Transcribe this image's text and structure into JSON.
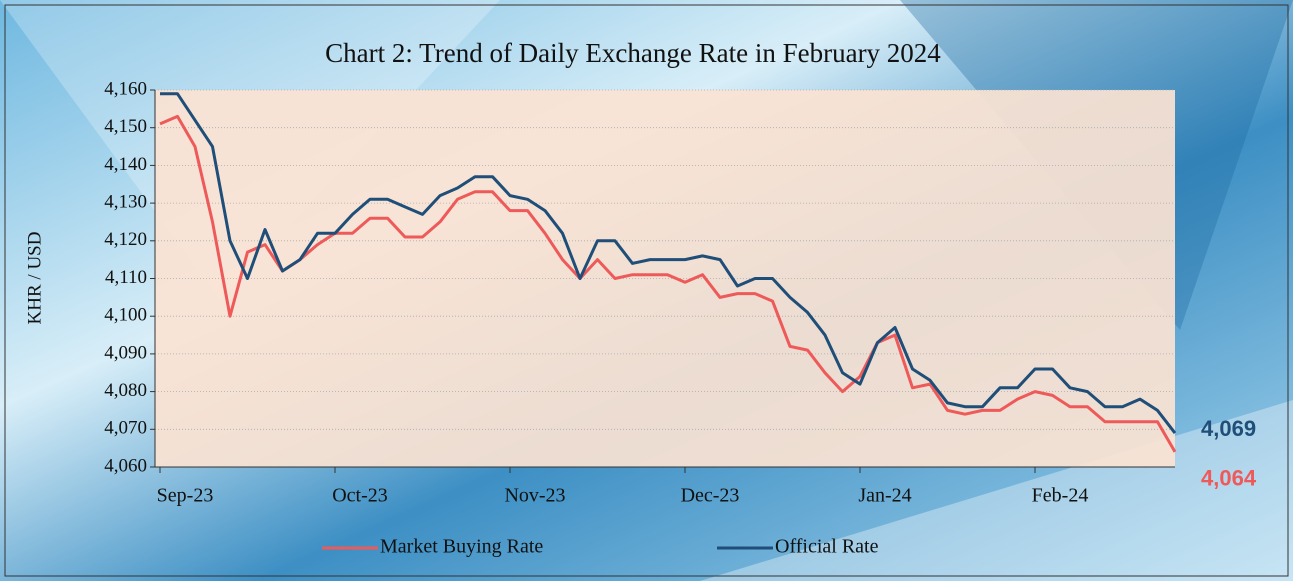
{
  "chart_data": {
    "type": "line",
    "title": "Chart 2: Trend of Daily Exchange Rate in February 2024",
    "y_label": "KHR / USD",
    "categories": [
      "Sep-23",
      null,
      null,
      null,
      null,
      null,
      null,
      null,
      null,
      null,
      "Oct-23",
      null,
      null,
      null,
      null,
      null,
      null,
      null,
      null,
      null,
      "Nov-23",
      null,
      null,
      null,
      null,
      null,
      null,
      null,
      null,
      null,
      "Dec-23",
      null,
      null,
      null,
      null,
      null,
      null,
      null,
      null,
      null,
      "Jan-24",
      null,
      null,
      null,
      null,
      null,
      null,
      null,
      null,
      null,
      "Feb-24",
      null,
      null,
      null,
      null,
      null,
      null,
      null,
      null
    ],
    "series": [
      {
        "name": "Market Buying Rate",
        "color": "#ee5a5a",
        "values": [
          4151,
          4153,
          4145,
          4125,
          4100,
          4117,
          4119,
          4112,
          4115,
          4119,
          4122,
          4122,
          4126,
          4126,
          4121,
          4121,
          4125,
          4131,
          4133,
          4133,
          4128,
          4128,
          4122,
          4115,
          4110,
          4115,
          4110,
          4111,
          4111,
          4111,
          4109,
          4111,
          4105,
          4106,
          4106,
          4104,
          4092,
          4091,
          4085,
          4080,
          4084,
          4093,
          4095,
          4081,
          4082,
          4075,
          4074,
          4075,
          4075,
          4078,
          4080,
          4079,
          4076,
          4076,
          4072,
          4072,
          4072,
          4072,
          4064
        ],
        "value_labels": [
          null,
          null,
          null,
          null,
          null,
          null,
          null,
          null,
          null,
          null,
          null,
          null,
          null,
          null,
          null,
          null,
          null,
          null,
          null,
          null,
          null,
          null,
          null,
          null,
          null,
          null,
          null,
          null,
          null,
          null,
          null,
          null,
          null,
          null,
          null,
          null,
          null,
          null,
          null,
          null,
          null,
          null,
          null,
          null,
          null,
          null,
          null,
          null,
          null,
          null,
          null,
          null,
          null,
          null,
          null,
          null,
          null,
          null,
          "4,064"
        ]
      },
      {
        "name": "Official Rate",
        "color": "#1f4e79",
        "values": [
          4159,
          4159,
          4152,
          4145,
          4120,
          4110,
          4123,
          4112,
          4115,
          4122,
          4122,
          4127,
          4131,
          4131,
          4129,
          4127,
          4132,
          4134,
          4137,
          4137,
          4132,
          4131,
          4128,
          4122,
          4110,
          4120,
          4120,
          4114,
          4115,
          4115,
          4115,
          4116,
          4115,
          4108,
          4110,
          4110,
          4105,
          4101,
          4095,
          4085,
          4082,
          4093,
          4097,
          4086,
          4083,
          4077,
          4076,
          4076,
          4081,
          4081,
          4086,
          4086,
          4081,
          4080,
          4076,
          4076,
          4078,
          4075,
          4069
        ],
        "value_labels": [
          null,
          null,
          null,
          null,
          null,
          null,
          null,
          null,
          null,
          null,
          null,
          null,
          null,
          null,
          null,
          null,
          null,
          null,
          null,
          null,
          null,
          null,
          null,
          null,
          null,
          null,
          null,
          null,
          null,
          null,
          null,
          null,
          null,
          null,
          null,
          null,
          null,
          null,
          null,
          null,
          null,
          null,
          null,
          null,
          null,
          null,
          null,
          null,
          null,
          null,
          null,
          null,
          null,
          null,
          null,
          null,
          null,
          null,
          "4,069"
        ]
      }
    ],
    "ylim": [
      4060,
      4160
    ],
    "yticks": [
      {
        "value": 4060,
        "label": "4,060"
      },
      {
        "value": 4070,
        "label": "4,070"
      },
      {
        "value": 4080,
        "label": "4,080"
      },
      {
        "value": 4090,
        "label": "4,090"
      },
      {
        "value": 4100,
        "label": "4,100"
      },
      {
        "value": 4110,
        "label": "4,110"
      },
      {
        "value": 4120,
        "label": "4,120"
      },
      {
        "value": 4130,
        "label": "4,130"
      },
      {
        "value": 4140,
        "label": "4,140"
      },
      {
        "value": 4150,
        "label": "4,150"
      },
      {
        "value": 4160,
        "label": "4,160"
      }
    ],
    "grid": true,
    "legend": "bottom"
  }
}
